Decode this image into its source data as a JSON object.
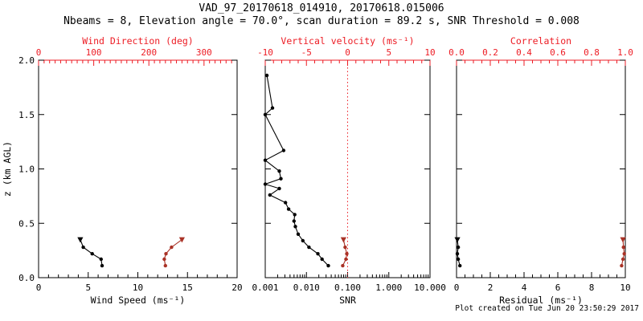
{
  "title": "VAD_97_20170618_014910, 20170618.015006",
  "subtitle": "Nbeams = 8, Elevation angle = 70.0°, scan duration = 89.2 s, SNR Threshold = 0.008",
  "footer": "Plot created on Tue Jun 20 23:50:29 2017",
  "colors": {
    "black": "#000000",
    "axis_red": "#ed1c24",
    "data_red": "#a93226",
    "background": "#ffffff"
  },
  "chart_data": [
    {
      "type": "line",
      "name": "wind",
      "bottom_axis": {
        "label": "Wind Speed (ms⁻¹)",
        "min": 0,
        "max": 20,
        "ticks": [
          0,
          5,
          10,
          15,
          20
        ],
        "tick_labels": [
          "0",
          "5",
          "10",
          "15",
          "20"
        ],
        "minor_step": 1
      },
      "top_axis": {
        "label": "Wind Direction (deg)",
        "min": 0,
        "max": 360,
        "ticks": [
          0,
          100,
          200,
          300
        ],
        "tick_labels": [
          "0",
          "100",
          "200",
          "300"
        ],
        "minor_step": 10
      },
      "y_axis": {
        "label": "z (km AGL)",
        "min": 0,
        "max": 2,
        "ticks": [
          0,
          0.5,
          1,
          1.5,
          2
        ],
        "tick_labels": [
          "0.0",
          "0.5",
          "1.0",
          "1.5",
          "2.0"
        ],
        "show_labels": true
      },
      "series": [
        {
          "name": "wind-speed",
          "axis": "bottom",
          "color": "black",
          "top_marker": "triangle",
          "z": [
            0.11,
            0.17,
            0.22,
            0.28,
            0.35
          ],
          "values": [
            6.4,
            6.3,
            5.4,
            4.5,
            4.2
          ]
        },
        {
          "name": "wind-direction",
          "axis": "top",
          "color": "data_red",
          "top_marker": "triangle",
          "z": [
            0.11,
            0.17,
            0.22,
            0.28,
            0.35
          ],
          "values": [
            230,
            228,
            231,
            241,
            260
          ]
        }
      ]
    },
    {
      "type": "line",
      "name": "snr-vertical-velocity",
      "bottom_axis": {
        "label": "SNR",
        "min": 0.001,
        "max": 10,
        "scale": "log",
        "ticks": [
          0.001,
          0.01,
          0.1,
          1,
          10
        ],
        "tick_labels": [
          "0.001",
          "0.010",
          "0.100",
          "1.000",
          "10.000"
        ]
      },
      "top_axis": {
        "label": "Vertical velocity (ms⁻¹)",
        "min": -10,
        "max": 10,
        "ticks": [
          -10,
          -5,
          0,
          5,
          10
        ],
        "tick_labels": [
          "-10",
          "-5",
          "0",
          "5",
          "10"
        ],
        "minor_step": 1
      },
      "y_axis": {
        "min": 0,
        "max": 2,
        "ticks": [
          0,
          0.5,
          1,
          1.5,
          2
        ],
        "show_labels": false
      },
      "reference_line": {
        "axis": "top",
        "value": 0,
        "style": "dotted",
        "color": "axis_red"
      },
      "series": [
        {
          "name": "snr",
          "axis": "bottom",
          "color": "black",
          "z": [
            0.11,
            0.17,
            0.22,
            0.28,
            0.34,
            0.4,
            0.47,
            0.52,
            0.58,
            0.63,
            0.69,
            0.76,
            0.82,
            0.86,
            0.91,
            0.98,
            1.08,
            1.17,
            1.5,
            1.56,
            1.86
          ],
          "values": [
            0.034,
            0.024,
            0.019,
            0.0115,
            0.0082,
            0.0063,
            0.0054,
            0.005,
            0.0052,
            0.0037,
            0.0031,
            0.0013,
            0.0022,
            0.001,
            0.0024,
            0.0022,
            0.001,
            0.0028,
            0.001,
            0.0015,
            0.0011
          ]
        },
        {
          "name": "vertical-velocity",
          "axis": "top",
          "color": "data_red",
          "top_marker": "triangle",
          "z": [
            0.11,
            0.17,
            0.22,
            0.28,
            0.35
          ],
          "values": [
            -0.6,
            -0.2,
            -0.1,
            -0.3,
            -0.5
          ]
        }
      ]
    },
    {
      "type": "line",
      "name": "residual-correlation",
      "bottom_axis": {
        "label": "Residual (ms⁻¹)",
        "min": 0,
        "max": 10,
        "ticks": [
          0,
          2,
          4,
          6,
          8,
          10
        ],
        "tick_labels": [
          "0",
          "2",
          "4",
          "6",
          "8",
          "10"
        ],
        "minor_step": 0.5
      },
      "top_axis": {
        "label": "Correlation",
        "min": 0,
        "max": 1,
        "ticks": [
          0,
          0.2,
          0.4,
          0.6,
          0.8,
          1
        ],
        "tick_labels": [
          "0.0",
          "0.2",
          "0.4",
          "0.6",
          "0.8",
          "1.0"
        ],
        "minor_step": 0.05
      },
      "y_axis": {
        "min": 0,
        "max": 2,
        "ticks": [
          0,
          0.5,
          1,
          1.5,
          2
        ],
        "show_labels": false
      },
      "series": [
        {
          "name": "residual",
          "axis": "bottom",
          "color": "black",
          "top_marker": "triangle",
          "z": [
            0.11,
            0.17,
            0.22,
            0.28,
            0.35
          ],
          "values": [
            0.2,
            0.1,
            0.05,
            0.1,
            0.05
          ]
        },
        {
          "name": "correlation",
          "axis": "top",
          "color": "data_red",
          "top_marker": "triangle",
          "z": [
            0.11,
            0.17,
            0.22,
            0.28,
            0.35
          ],
          "values": [
            0.978,
            0.986,
            0.994,
            0.989,
            0.986
          ]
        }
      ]
    }
  ]
}
